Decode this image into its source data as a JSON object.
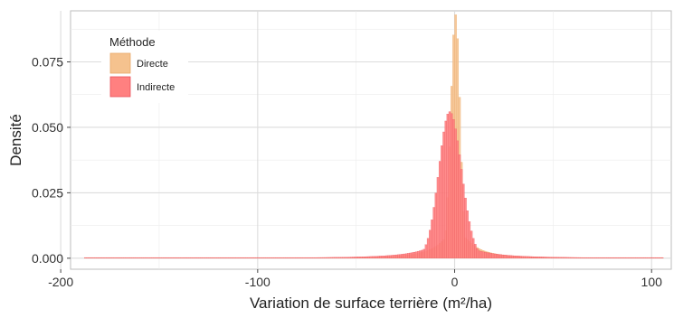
{
  "chart_data": {
    "type": "histogram",
    "xlabel": "Variation de surface terrière (m²/ha)",
    "ylabel": "Densité",
    "xlim": [
      -195,
      110
    ],
    "ylim": [
      -0.0042,
      0.0945
    ],
    "x_ticks": [
      -200,
      -100,
      0,
      100
    ],
    "x_tick_labels": [
      "-200",
      "-100",
      "0",
      "100"
    ],
    "y_ticks": [
      0.0,
      0.025,
      0.05,
      0.075
    ],
    "y_tick_labels": [
      "0.000",
      "0.025",
      "0.050",
      "0.075"
    ],
    "grid": true,
    "legend": {
      "title": "Méthode",
      "placement": "top-left",
      "entries": [
        {
          "label": "Directe",
          "color": "#F5C28E",
          "stroke": "#E8A86A"
        },
        {
          "label": "Indirecte",
          "color": "#FF8080",
          "stroke": "#E8505A"
        }
      ]
    },
    "series": [
      {
        "name": "Directe",
        "fill": "#F5C28E",
        "stroke": "#E8A86A",
        "bin_width": 1,
        "x_min": -188,
        "x_max": 106,
        "peak_center": 0.5,
        "peak_density": 0.093,
        "spread_left": 2.4,
        "spread_right": 2.2,
        "tail_scale": 9
      },
      {
        "name": "Indirecte",
        "fill": "#FF8080",
        "stroke": "#E8505A",
        "bin_width": 1,
        "x_min": -188,
        "x_max": 106,
        "peak_center": -2.5,
        "peak_density": 0.056,
        "spread_left": 5.5,
        "spread_right": 6.0,
        "tail_scale": 14
      }
    ]
  }
}
